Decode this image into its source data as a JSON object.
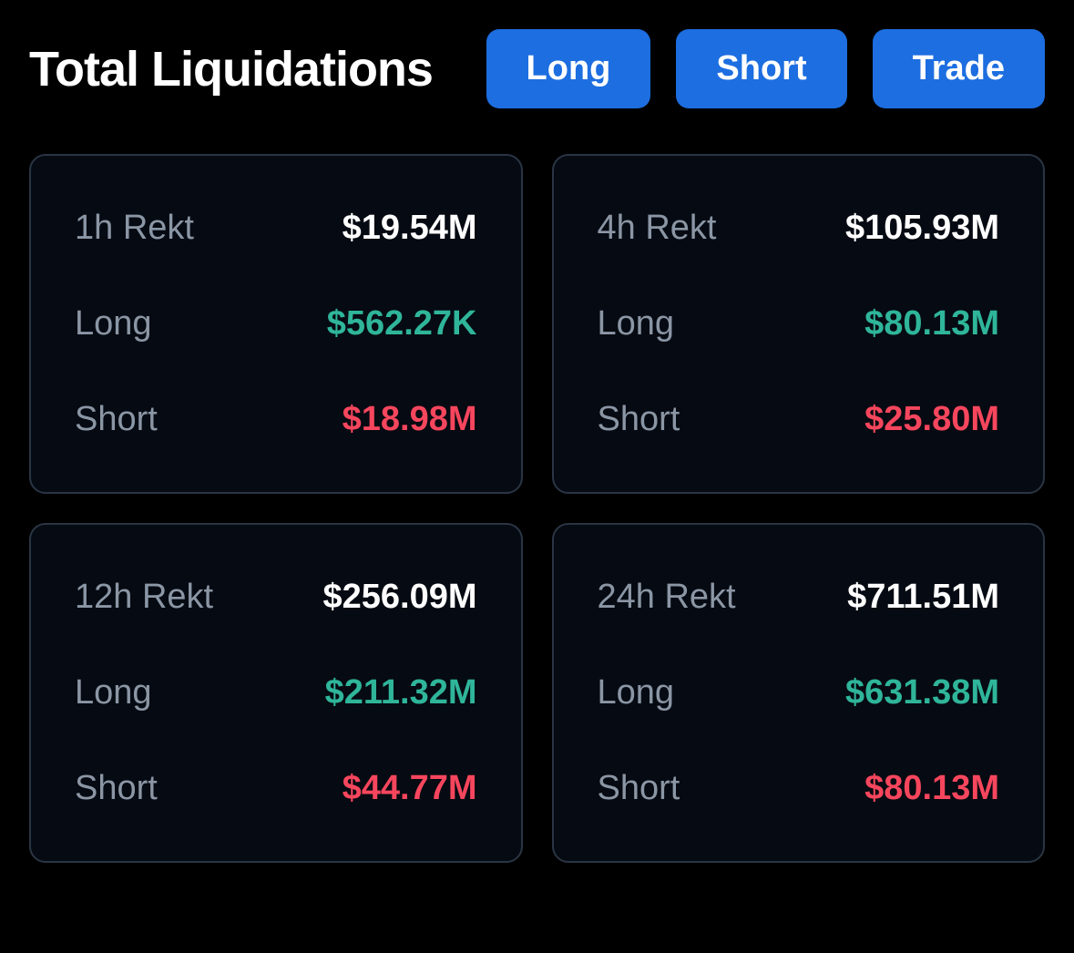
{
  "header": {
    "title": "Total Liquidations",
    "buttons": {
      "long": "Long",
      "short": "Short",
      "trade": "Trade"
    }
  },
  "colors": {
    "background": "#000000",
    "card_bg": "#060a12",
    "card_border": "#2a3544",
    "button_bg": "#1d6ee0",
    "text_white": "#ffffff",
    "text_muted": "#8b96a5",
    "text_green": "#2fb59a",
    "text_red": "#f6465d"
  },
  "cards": [
    {
      "title_label": "1h Rekt",
      "title_value": "$19.54M",
      "long_label": "Long",
      "long_value": "$562.27K",
      "short_label": "Short",
      "short_value": "$18.98M"
    },
    {
      "title_label": "4h Rekt",
      "title_value": "$105.93M",
      "long_label": "Long",
      "long_value": "$80.13M",
      "short_label": "Short",
      "short_value": "$25.80M"
    },
    {
      "title_label": "12h Rekt",
      "title_value": "$256.09M",
      "long_label": "Long",
      "long_value": "$211.32M",
      "short_label": "Short",
      "short_value": "$44.77M"
    },
    {
      "title_label": "24h Rekt",
      "title_value": "$711.51M",
      "long_label": "Long",
      "long_value": "$631.38M",
      "short_label": "Short",
      "short_value": "$80.13M"
    }
  ]
}
